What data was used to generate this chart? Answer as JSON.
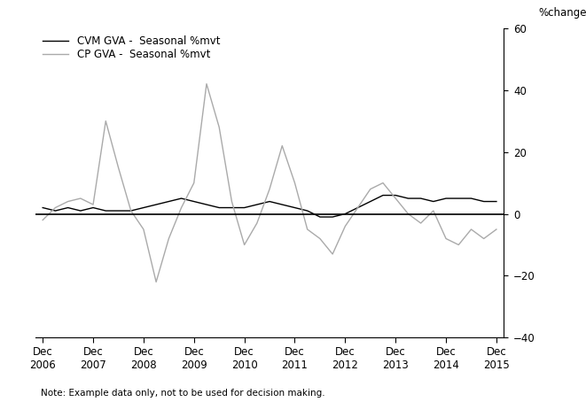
{
  "ylabel": "%change",
  "note": "Note: Example data only, not to be used for decision making.",
  "ylim": [
    -40,
    60
  ],
  "yticks": [
    -40,
    -20,
    0,
    20,
    40,
    60
  ],
  "legend_labels": [
    "CVM GVA -  Seasonal %mvt",
    "CP GVA -  Seasonal %mvt"
  ],
  "cvm_color": "#000000",
  "cp_color": "#aaaaaa",
  "xtick_labels": [
    "Dec\n2006",
    "Dec\n2007",
    "Dec\n2008",
    "Dec\n2009",
    "Dec\n2010",
    "Dec\n2011",
    "Dec\n2012",
    "Dec\n2013",
    "Dec\n2014",
    "Dec\n2015"
  ],
  "cvm_data": [
    2,
    1,
    2,
    1,
    2,
    1,
    1,
    1,
    2,
    3,
    4,
    5,
    4,
    3,
    2,
    2,
    2,
    3,
    4,
    3,
    2,
    1,
    -1,
    -1,
    0,
    2,
    4,
    6,
    6,
    5,
    5,
    4,
    5,
    5,
    5,
    4,
    4
  ],
  "cp_data": [
    -2,
    2,
    4,
    5,
    3,
    30,
    15,
    1,
    -5,
    -22,
    -8,
    2,
    10,
    42,
    28,
    4,
    -10,
    -3,
    8,
    22,
    10,
    -5,
    -8,
    -13,
    -4,
    2,
    8,
    10,
    5,
    0,
    -3,
    1,
    -8,
    -10,
    -5,
    -8,
    -5
  ],
  "figsize": [
    6.61,
    4.54
  ],
  "dpi": 100
}
